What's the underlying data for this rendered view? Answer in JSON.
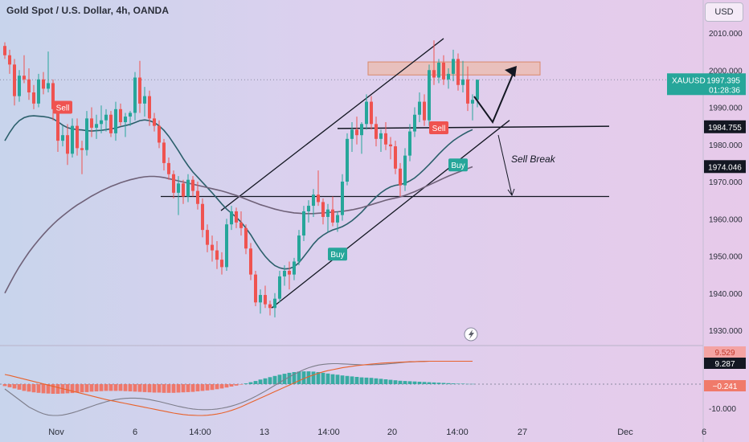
{
  "header": {
    "title": "Gold Spot / U.S. Dollar, 4h, OANDA",
    "currency": "USD"
  },
  "chart_data": {
    "type": "candlestick",
    "symbol": "XAUUSD",
    "last_price": "1997.395",
    "countdown": "01:28:36",
    "price_axis": {
      "ylim": [
        1925,
        2016
      ],
      "ticks": [
        2010,
        2000,
        1990,
        1980,
        1970,
        1960,
        1950,
        1940,
        1930
      ],
      "tick_labels": [
        "2010.000",
        "2000.000",
        "1990.000",
        "1980.000",
        "1970.000",
        "1960.000",
        "1950.000",
        "1940.000",
        "1930.000"
      ]
    },
    "time_axis": {
      "labels": [
        "Nov",
        "6",
        "14:00",
        "13",
        "14:00",
        "20",
        "14:00",
        "27",
        "Dec",
        "6"
      ]
    },
    "price_badges": [
      {
        "value": 1984.755,
        "label": "1984.755",
        "color": "#131722"
      },
      {
        "value": 1974.046,
        "label": "1974.046",
        "color": "#131722"
      }
    ],
    "candles": [
      [
        2006.5,
        2007.5,
        2003.0,
        2004.0
      ],
      [
        2004.0,
        2005.5,
        1999.0,
        2001.5
      ],
      [
        2001.5,
        2003.0,
        1990.5,
        1993.0
      ],
      [
        1993.0,
        2000.0,
        1991.5,
        1998.5
      ],
      [
        1998.5,
        2004.0,
        1996.5,
        1997.5
      ],
      [
        1997.5,
        2000.5,
        1992.0,
        1994.0
      ],
      [
        1994.0,
        1996.0,
        1989.5,
        1991.0
      ],
      [
        1991.0,
        1999.0,
        1990.0,
        1997.5
      ],
      [
        1997.5,
        1999.5,
        1993.5,
        1995.0
      ],
      [
        1995.0,
        2005.0,
        1994.0,
        1996.5
      ],
      [
        1996.5,
        1997.5,
        1986.5,
        1989.5
      ],
      [
        1989.5,
        1990.5,
        1978.0,
        1981.0
      ],
      [
        1981.0,
        1985.0,
        1979.5,
        1982.5
      ],
      [
        1982.5,
        1985.5,
        1974.5,
        1977.5
      ],
      [
        1977.5,
        1987.0,
        1976.5,
        1985.0
      ],
      [
        1985.0,
        1987.0,
        1977.0,
        1979.0
      ],
      [
        1979.0,
        1981.0,
        1972.0,
        1978.5
      ],
      [
        1978.5,
        1989.0,
        1977.0,
        1987.0
      ],
      [
        1987.0,
        1990.0,
        1982.0,
        1984.5
      ],
      [
        1984.5,
        1988.0,
        1981.5,
        1985.5
      ],
      [
        1985.5,
        1990.5,
        1983.0,
        1986.5
      ],
      [
        1986.5,
        1989.5,
        1983.5,
        1988.0
      ],
      [
        1988.0,
        1989.0,
        1982.0,
        1983.0
      ],
      [
        1983.0,
        1991.5,
        1981.0,
        1989.5
      ],
      [
        1989.5,
        1991.0,
        1985.0,
        1986.0
      ],
      [
        1986.0,
        1988.5,
        1982.0,
        1987.5
      ],
      [
        1987.5,
        1989.0,
        1985.0,
        1988.5
      ],
      [
        1988.5,
        1999.5,
        1986.5,
        1998.0
      ],
      [
        1998.0,
        2002.5,
        1988.5,
        1991.0
      ],
      [
        1991.0,
        1995.5,
        1987.5,
        1993.0
      ],
      [
        1993.0,
        1994.5,
        1985.0,
        1987.0
      ],
      [
        1987.0,
        1988.5,
        1983.5,
        1985.0
      ],
      [
        1985.0,
        1986.5,
        1979.0,
        1980.5
      ],
      [
        1980.5,
        1981.5,
        1973.0,
        1975.0
      ],
      [
        1975.0,
        1976.5,
        1970.5,
        1972.0
      ],
      [
        1972.0,
        1973.0,
        1965.5,
        1967.0
      ],
      [
        1967.0,
        1971.5,
        1961.0,
        1969.5
      ],
      [
        1969.5,
        1970.5,
        1964.0,
        1966.0
      ],
      [
        1966.0,
        1972.0,
        1964.5,
        1970.5
      ],
      [
        1970.5,
        1971.5,
        1966.0,
        1967.5
      ],
      [
        1967.5,
        1970.0,
        1962.5,
        1964.0
      ],
      [
        1964.0,
        1965.5,
        1955.0,
        1957.0
      ],
      [
        1957.0,
        1958.5,
        1951.0,
        1953.0
      ],
      [
        1953.0,
        1955.5,
        1948.5,
        1951.5
      ],
      [
        1951.5,
        1954.0,
        1946.5,
        1949.0
      ],
      [
        1949.0,
        1951.0,
        1945.0,
        1947.0
      ],
      [
        1947.0,
        1960.0,
        1946.0,
        1958.5
      ],
      [
        1958.5,
        1963.5,
        1957.0,
        1962.0
      ],
      [
        1962.0,
        1963.0,
        1957.5,
        1959.0
      ],
      [
        1959.0,
        1962.0,
        1955.5,
        1957.5
      ],
      [
        1957.5,
        1958.5,
        1950.5,
        1952.0
      ],
      [
        1952.0,
        1953.5,
        1943.5,
        1945.0
      ],
      [
        1945.0,
        1946.0,
        1936.5,
        1937.5
      ],
      [
        1937.5,
        1941.0,
        1934.5,
        1939.5
      ],
      [
        1939.5,
        1942.0,
        1936.0,
        1937.0
      ],
      [
        1937.0,
        1938.0,
        1934.0,
        1936.0
      ],
      [
        1936.0,
        1940.0,
        1933.5,
        1938.5
      ],
      [
        1938.5,
        1946.0,
        1937.5,
        1944.5
      ],
      [
        1944.5,
        1947.5,
        1942.0,
        1946.0
      ],
      [
        1946.0,
        1948.5,
        1941.0,
        1945.0
      ],
      [
        1945.0,
        1949.5,
        1943.5,
        1948.5
      ],
      [
        1948.5,
        1957.0,
        1947.5,
        1955.5
      ],
      [
        1955.5,
        1963.5,
        1954.0,
        1962.0
      ],
      [
        1962.0,
        1965.0,
        1959.0,
        1963.5
      ],
      [
        1963.5,
        1968.0,
        1960.5,
        1966.5
      ],
      [
        1966.5,
        1973.0,
        1963.5,
        1964.5
      ],
      [
        1964.5,
        1965.5,
        1958.5,
        1960.5
      ],
      [
        1960.5,
        1964.0,
        1956.5,
        1962.5
      ],
      [
        1962.5,
        1966.0,
        1958.0,
        1959.0
      ],
      [
        1959.0,
        1962.0,
        1956.5,
        1961.0
      ],
      [
        1961.0,
        1972.0,
        1959.5,
        1970.0
      ],
      [
        1970.0,
        1983.0,
        1969.0,
        1981.5
      ],
      [
        1981.5,
        1986.0,
        1978.0,
        1984.0
      ],
      [
        1984.0,
        1987.5,
        1980.0,
        1982.5
      ],
      [
        1982.5,
        1986.0,
        1977.5,
        1985.5
      ],
      [
        1985.5,
        1993.5,
        1984.0,
        1991.5
      ],
      [
        1991.5,
        1993.0,
        1984.0,
        1985.5
      ],
      [
        1985.5,
        1987.5,
        1979.5,
        1981.5
      ],
      [
        1981.5,
        1984.0,
        1978.0,
        1983.0
      ],
      [
        1983.0,
        1986.0,
        1978.5,
        1980.0
      ],
      [
        1980.0,
        1982.0,
        1976.0,
        1979.5
      ],
      [
        1979.5,
        1981.0,
        1972.0,
        1973.5
      ],
      [
        1973.5,
        1975.0,
        1966.0,
        1969.0
      ],
      [
        1969.0,
        1979.0,
        1967.5,
        1977.0
      ],
      [
        1977.0,
        1985.5,
        1975.5,
        1983.5
      ],
      [
        1983.5,
        1990.0,
        1982.0,
        1988.0
      ],
      [
        1988.0,
        1994.0,
        1986.0,
        1991.5
      ],
      [
        1991.5,
        1993.5,
        1985.0,
        1986.5
      ],
      [
        1986.5,
        2001.5,
        1985.0,
        2000.0
      ],
      [
        2000.0,
        2008.0,
        1996.0,
        1998.0
      ],
      [
        1998.0,
        2003.0,
        1996.5,
        2002.0
      ],
      [
        2002.0,
        2004.0,
        1996.0,
        1997.5
      ],
      [
        1997.5,
        2000.5,
        1995.0,
        1999.0
      ],
      [
        1999.0,
        2005.5,
        1997.0,
        2003.0
      ],
      [
        2003.0,
        2004.5,
        1994.5,
        1996.0
      ],
      [
        1996.0,
        2002.5,
        1994.0,
        1997.5
      ],
      [
        1997.5,
        2001.0,
        1989.0,
        1991.0
      ],
      [
        1991.0,
        1993.5,
        1986.5,
        1992.0
      ],
      [
        1992.0,
        1997.5,
        1990.0,
        1997.4
      ]
    ],
    "moving_averages": [
      {
        "color": "#2b5f6b",
        "values": [
          1981.0,
          1983.2,
          1985.1,
          1986.4,
          1987.2,
          1987.6,
          1987.7,
          1987.6,
          1987.5,
          1987.3,
          1986.9,
          1986.1,
          1985.2,
          1984.5,
          1984.2,
          1984.0,
          1983.9,
          1983.7,
          1983.6,
          1983.7,
          1983.8,
          1984.0,
          1984.2,
          1984.4,
          1984.8,
          1985.1,
          1985.4,
          1985.9,
          1986.4,
          1986.6,
          1986.4,
          1985.9,
          1985.0,
          1983.8,
          1982.2,
          1980.3,
          1978.3,
          1976.2,
          1974.3,
          1972.6,
          1971.2,
          1969.8,
          1968.4,
          1967.0,
          1965.5,
          1964.0,
          1962.6,
          1961.5,
          1960.4,
          1959.1,
          1957.5,
          1955.7,
          1953.6,
          1951.6,
          1949.9,
          1948.5,
          1947.4,
          1946.8,
          1946.5,
          1946.6,
          1947.1,
          1948.2,
          1949.8,
          1951.5,
          1953.2,
          1954.6,
          1955.6,
          1956.4,
          1957.0,
          1957.4,
          1957.9,
          1958.6,
          1959.5,
          1960.6,
          1961.8,
          1963.2,
          1964.6,
          1965.9,
          1967.0,
          1967.9,
          1968.6,
          1969.0,
          1969.2,
          1969.6,
          1970.2,
          1971.0,
          1972.1,
          1973.3,
          1974.6,
          1976.0,
          1977.4,
          1978.7,
          1979.9,
          1981.0,
          1981.9,
          1982.7,
          1983.4,
          1984.0
        ]
      },
      {
        "color": "#6f6178",
        "values": [
          1940.0,
          1942.5,
          1944.9,
          1947.1,
          1949.1,
          1951.0,
          1952.7,
          1954.3,
          1955.8,
          1957.2,
          1958.5,
          1959.7,
          1960.8,
          1961.8,
          1962.8,
          1963.7,
          1964.5,
          1965.3,
          1966.1,
          1966.8,
          1967.5,
          1968.1,
          1968.7,
          1969.2,
          1969.7,
          1970.1,
          1970.5,
          1970.8,
          1971.1,
          1971.3,
          1971.4,
          1971.4,
          1971.3,
          1971.1,
          1970.8,
          1970.5,
          1970.2,
          1969.9,
          1969.6,
          1969.3,
          1969.0,
          1968.7,
          1968.4,
          1968.1,
          1967.8,
          1967.5,
          1967.1,
          1966.7,
          1966.3,
          1965.8,
          1965.3,
          1964.8,
          1964.3,
          1963.8,
          1963.4,
          1963.0,
          1962.6,
          1962.3,
          1962.0,
          1961.8,
          1961.6,
          1961.5,
          1961.4,
          1961.4,
          1961.4,
          1961.5,
          1961.6,
          1961.7,
          1961.8,
          1961.9,
          1962.0,
          1962.2,
          1962.4,
          1962.7,
          1963.0,
          1963.4,
          1963.8,
          1964.2,
          1964.6,
          1965.0,
          1965.3,
          1965.6,
          1965.9,
          1966.3,
          1966.8,
          1967.3,
          1967.9,
          1968.5,
          1969.1,
          1969.7,
          1970.3,
          1970.9,
          1971.5,
          1972.0,
          1972.5,
          1973.0,
          1973.5,
          1974.0
        ]
      }
    ],
    "annotations": {
      "signals": [
        {
          "label": "Sell",
          "type": "sell",
          "index": 12,
          "price": 1990.0
        },
        {
          "label": "Buy",
          "type": "buy",
          "index": 69,
          "price": 1950.5
        },
        {
          "label": "Sell",
          "type": "sell",
          "index": 90,
          "price": 1984.5
        },
        {
          "label": "Buy",
          "type": "buy",
          "index": 94,
          "price": 1974.5
        }
      ],
      "sell_break_text": "Sell Break"
    },
    "indicator": {
      "ylim": [
        -15,
        14
      ],
      "tick_labels": [
        "-10.000"
      ],
      "tick_values": [
        -10
      ],
      "badges": [
        {
          "value": 9.529,
          "label": "9.529",
          "color": "#f4a3a3",
          "text_color": "#c0392b"
        },
        {
          "value": 9.287,
          "label": "9.287",
          "color": "#131722",
          "text_color": "#ffffff"
        },
        {
          "value": -0.241,
          "label": "−0.241",
          "color": "#f07a6a",
          "text_color": "#ffffff"
        }
      ],
      "histogram": [
        -0.8,
        -1.3,
        -1.8,
        -2.3,
        -2.8,
        -3.1,
        -3.4,
        -3.6,
        -3.8,
        -3.9,
        -4.0,
        -4.0,
        -3.9,
        -3.8,
        -3.7,
        -3.5,
        -3.4,
        -3.3,
        -3.1,
        -3.0,
        -2.9,
        -2.8,
        -2.8,
        -2.8,
        -2.8,
        -2.9,
        -3.0,
        -3.1,
        -3.2,
        -3.3,
        -3.4,
        -3.5,
        -3.5,
        -3.6,
        -3.6,
        -3.6,
        -3.5,
        -3.4,
        -3.3,
        -3.2,
        -3.0,
        -2.8,
        -2.6,
        -2.4,
        -2.1,
        -1.8,
        -1.4,
        -1.0,
        -0.6,
        -0.2,
        0.3,
        0.8,
        1.3,
        1.9,
        2.4,
        2.9,
        3.4,
        3.9,
        4.3,
        4.7,
        5.0,
        5.2,
        5.3,
        5.3,
        5.2,
        5.0,
        4.7,
        4.4,
        4.1,
        3.9,
        3.6,
        3.4,
        3.2,
        3.0,
        2.8,
        2.7,
        2.6,
        2.4,
        2.2,
        2.0,
        1.8,
        1.6,
        1.4,
        1.3,
        1.2,
        1.1,
        1.0,
        0.9,
        0.8,
        0.7,
        0.6,
        0.5,
        0.4,
        0.3,
        0.2,
        0.2,
        0.1,
        0.1
      ],
      "lines": [
        {
          "color": "#7d7d8a",
          "values": [
            -2.0,
            -3.5,
            -5.0,
            -6.5,
            -8.0,
            -9.5,
            -10.5,
            -11.5,
            -12.3,
            -12.8,
            -13.0,
            -13.0,
            -12.8,
            -12.4,
            -11.9,
            -11.3,
            -10.6,
            -9.9,
            -9.2,
            -8.5,
            -7.9,
            -7.3,
            -6.8,
            -6.4,
            -6.1,
            -5.9,
            -5.8,
            -5.8,
            -5.9,
            -6.1,
            -6.4,
            -6.8,
            -7.2,
            -7.7,
            -8.2,
            -8.7,
            -9.2,
            -9.6,
            -10.0,
            -10.3,
            -10.5,
            -10.6,
            -10.6,
            -10.5,
            -10.3,
            -10.0,
            -9.6,
            -9.1,
            -8.5,
            -7.8,
            -7.0,
            -6.1,
            -5.1,
            -4.0,
            -2.9,
            -1.7,
            -0.5,
            0.7,
            1.9,
            3.0,
            4.1,
            5.1,
            6.0,
            6.8,
            7.4,
            7.9,
            8.2,
            8.4,
            8.5,
            8.5,
            8.4,
            8.3,
            8.2,
            8.1,
            8.0,
            8.0,
            8.0,
            8.1,
            8.2,
            8.3,
            8.5,
            8.7,
            8.9,
            9.1,
            9.2,
            9.3,
            9.4,
            9.5,
            9.5,
            9.5,
            9.5,
            9.5,
            9.5,
            9.5,
            9.5,
            9.5,
            9.5,
            9.5
          ]
        },
        {
          "color": "#e8622c",
          "values": [
            4.0,
            3.6,
            3.1,
            2.6,
            2.1,
            1.6,
            1.1,
            0.6,
            0.1,
            -0.4,
            -0.9,
            -1.4,
            -1.9,
            -2.4,
            -2.9,
            -3.4,
            -3.9,
            -4.4,
            -4.9,
            -5.4,
            -5.9,
            -6.4,
            -6.8,
            -7.2,
            -7.6,
            -8.0,
            -8.4,
            -8.8,
            -9.2,
            -9.6,
            -10.0,
            -10.4,
            -10.8,
            -11.2,
            -11.6,
            -12.0,
            -12.3,
            -12.6,
            -12.8,
            -12.9,
            -13.0,
            -13.0,
            -12.9,
            -12.7,
            -12.4,
            -12.0,
            -11.5,
            -10.9,
            -10.2,
            -9.4,
            -8.5,
            -7.6,
            -6.7,
            -5.8,
            -4.9,
            -4.0,
            -3.1,
            -2.2,
            -1.3,
            -0.4,
            0.5,
            1.4,
            2.3,
            3.1,
            3.8,
            4.5,
            5.1,
            5.6,
            6.0,
            6.4,
            6.8,
            7.1,
            7.4,
            7.7,
            7.9,
            8.1,
            8.3,
            8.5,
            8.7,
            8.8,
            8.9,
            9.0,
            9.1,
            9.2,
            9.3,
            9.3,
            9.4,
            9.4,
            9.5,
            9.5,
            9.5,
            9.5,
            9.5,
            9.5,
            9.5,
            9.5,
            9.5,
            9.5
          ]
        }
      ]
    }
  }
}
